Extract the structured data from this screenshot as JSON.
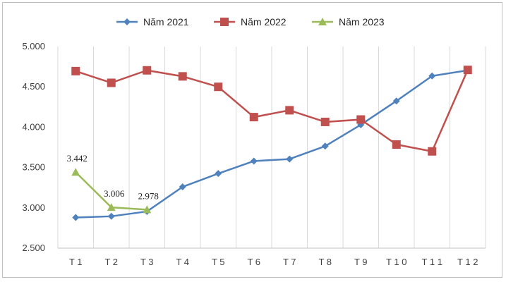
{
  "chart_data": {
    "type": "line",
    "title": "",
    "xlabel": "",
    "ylabel": "",
    "categories": [
      "T 1",
      "T 2",
      "T 3",
      "T 4",
      "T 5",
      "T 6",
      "T 7",
      "T 8",
      "T 9",
      "T 1 0",
      "T 1 1",
      "T 1 2"
    ],
    "ylim": [
      2500,
      5000
    ],
    "yticks": [
      2500,
      3000,
      3500,
      4000,
      4500,
      5000
    ],
    "ytick_labels": [
      "2.500",
      "3.000",
      "3.500",
      "4.000",
      "4.500",
      "5.000"
    ],
    "grid": "vertical",
    "legend_position": "top",
    "series": [
      {
        "name": "Năm 2021",
        "color": "#4f81bd",
        "marker": "diamond",
        "values": [
          2880,
          2895,
          2955,
          3260,
          3425,
          3580,
          3605,
          3765,
          4030,
          4325,
          4635,
          4705
        ]
      },
      {
        "name": "Năm 2022",
        "color": "#c0504d",
        "marker": "square",
        "values": [
          4695,
          4550,
          4705,
          4630,
          4500,
          4125,
          4210,
          4065,
          4095,
          3785,
          3700,
          4710
        ]
      },
      {
        "name": "Năm 2023",
        "color": "#9bbb59",
        "marker": "triangle",
        "values": [
          3442,
          3006,
          2978,
          null,
          null,
          null,
          null,
          null,
          null,
          null,
          null,
          null
        ],
        "data_labels": [
          "3.442",
          "3.006",
          "2.978"
        ]
      }
    ]
  }
}
